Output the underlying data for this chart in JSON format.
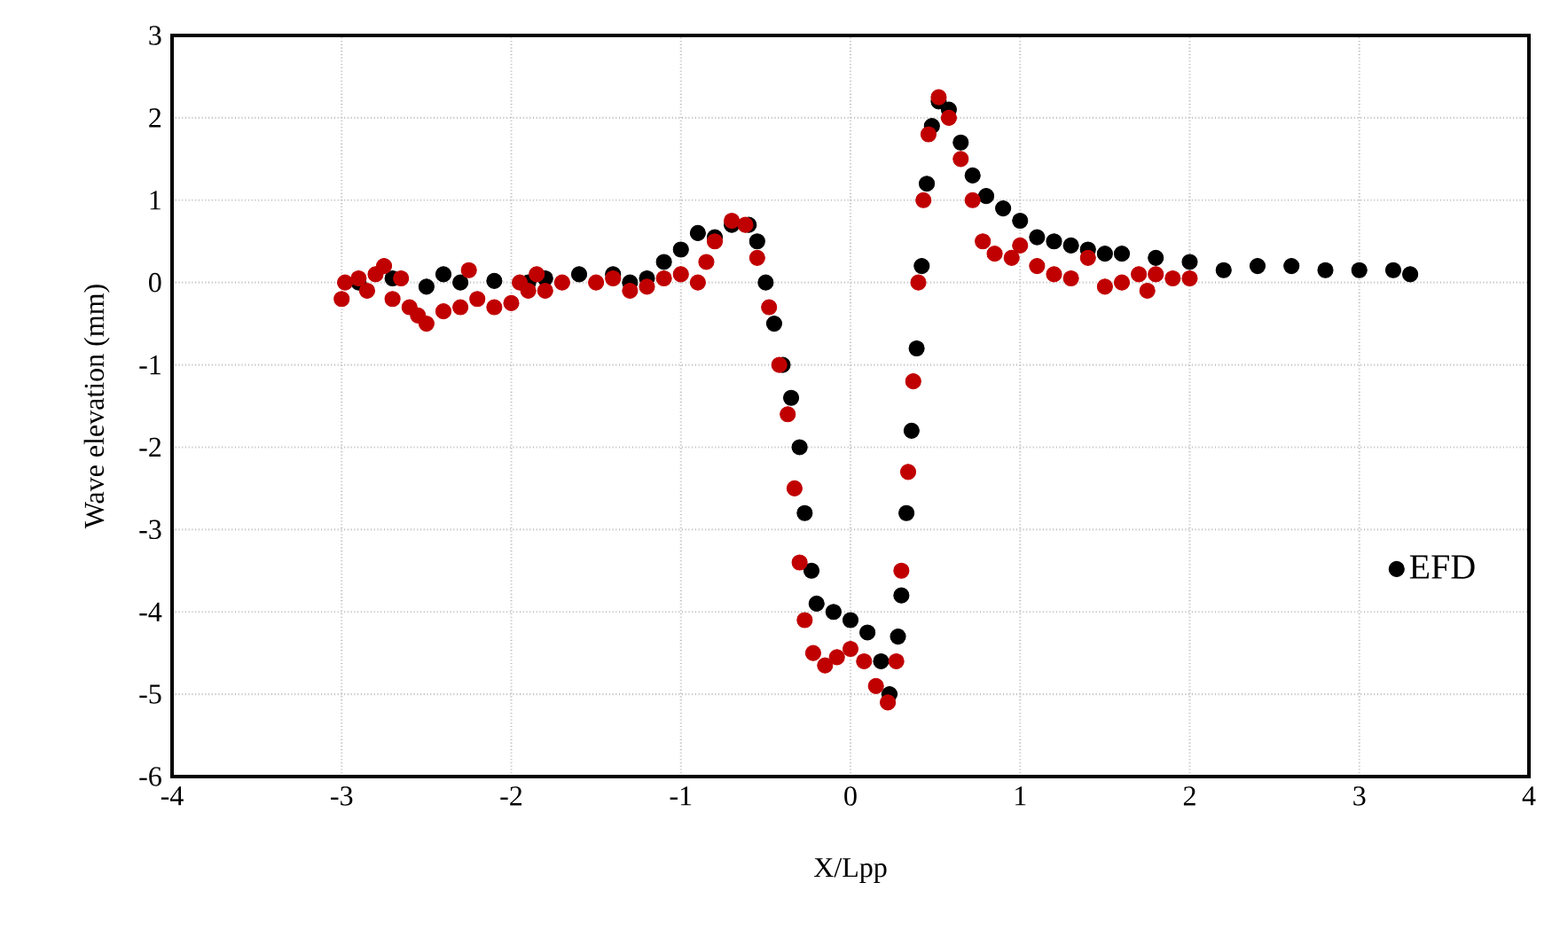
{
  "chart_data": {
    "type": "scatter",
    "xlabel": "X/Lpp",
    "ylabel": "Wave elevation (mm)",
    "xlim": [
      -4,
      4
    ],
    "ylim": [
      -6,
      3
    ],
    "xticks": [
      -4,
      -3,
      -2,
      -1,
      0,
      1,
      2,
      3,
      4
    ],
    "yticks": [
      -6,
      -5,
      -4,
      -3,
      -2,
      -1,
      0,
      1,
      2,
      3
    ],
    "grid": true,
    "legend": "right",
    "marker": "circle",
    "series": [
      {
        "name": "EFD",
        "color": "#000000",
        "x": [
          -2.9,
          -2.7,
          -2.5,
          -2.4,
          -2.3,
          -2.1,
          -1.9,
          -1.8,
          -1.6,
          -1.4,
          -1.3,
          -1.2,
          -1.1,
          -1.0,
          -0.9,
          -0.8,
          -0.7,
          -0.6,
          -0.55,
          -0.5,
          -0.45,
          -0.4,
          -0.35,
          -0.3,
          -0.27,
          -0.23,
          -0.2,
          -0.1,
          0,
          0.1,
          0.18,
          0.23,
          0.28,
          0.3,
          0.33,
          0.36,
          0.39,
          0.42,
          0.45,
          0.48,
          0.52,
          0.58,
          0.65,
          0.72,
          0.8,
          0.9,
          1.0,
          1.1,
          1.2,
          1.3,
          1.4,
          1.5,
          1.6,
          1.8,
          2.0,
          2.2,
          2.4,
          2.6,
          2.8,
          3.0,
          3.2,
          3.3
        ],
        "values": [
          0,
          0.05,
          -0.05,
          0.1,
          0,
          0.02,
          0,
          0.05,
          0.1,
          0.1,
          0,
          0.05,
          0.25,
          0.4,
          0.6,
          0.55,
          0.7,
          0.7,
          0.5,
          0,
          -0.5,
          -1.0,
          -1.4,
          -2.0,
          -2.8,
          -3.5,
          -3.9,
          -4.0,
          -4.1,
          -4.25,
          -4.6,
          -5.0,
          -4.3,
          -3.8,
          -2.8,
          -1.8,
          -0.8,
          0.2,
          1.2,
          1.9,
          2.2,
          2.1,
          1.7,
          1.3,
          1.05,
          0.9,
          0.75,
          0.55,
          0.5,
          0.45,
          0.4,
          0.35,
          0.35,
          0.3,
          0.25,
          0.15,
          0.2,
          0.2,
          0.15,
          0.15,
          0.15,
          0.1
        ]
      },
      {
        "color": "#c00000",
        "x": [
          -3.0,
          -2.98,
          -2.9,
          -2.85,
          -2.8,
          -2.75,
          -2.7,
          -2.65,
          -2.6,
          -2.55,
          -2.5,
          -2.4,
          -2.3,
          -2.25,
          -2.2,
          -2.1,
          -2.0,
          -1.95,
          -1.9,
          -1.85,
          -1.8,
          -1.7,
          -1.5,
          -1.4,
          -1.3,
          -1.2,
          -1.1,
          -1.0,
          -0.9,
          -0.85,
          -0.8,
          -0.7,
          -0.62,
          -0.55,
          -0.48,
          -0.42,
          -0.37,
          -0.33,
          -0.3,
          -0.27,
          -0.22,
          -0.15,
          -0.08,
          0.0,
          0.08,
          0.15,
          0.22,
          0.27,
          0.3,
          0.34,
          0.37,
          0.4,
          0.43,
          0.46,
          0.52,
          0.58,
          0.65,
          0.72,
          0.78,
          0.85,
          0.95,
          1.0,
          1.1,
          1.2,
          1.3,
          1.4,
          1.5,
          1.6,
          1.7,
          1.75,
          1.8,
          1.9,
          2.0
        ],
        "values": [
          -0.2,
          0,
          0.05,
          -0.1,
          0.1,
          0.2,
          -0.2,
          0.05,
          -0.3,
          -0.4,
          -0.5,
          -0.35,
          -0.3,
          0.15,
          -0.2,
          -0.3,
          -0.25,
          0,
          -0.1,
          0.1,
          -0.1,
          0,
          0,
          0.05,
          -0.1,
          -0.05,
          0.05,
          0.1,
          0,
          0.25,
          0.5,
          0.75,
          0.7,
          0.3,
          -0.3,
          -1.0,
          -1.6,
          -2.5,
          -3.4,
          -4.1,
          -4.5,
          -4.65,
          -4.55,
          -4.45,
          -4.6,
          -4.9,
          -5.1,
          -4.6,
          -3.5,
          -2.3,
          -1.2,
          0,
          1.0,
          1.8,
          2.25,
          2.0,
          1.5,
          1.0,
          0.5,
          0.35,
          0.3,
          0.45,
          0.2,
          0.1,
          0.05,
          0.3,
          -0.05,
          0,
          0.1,
          -0.1,
          0.1,
          0.05,
          0.05
        ]
      }
    ]
  }
}
